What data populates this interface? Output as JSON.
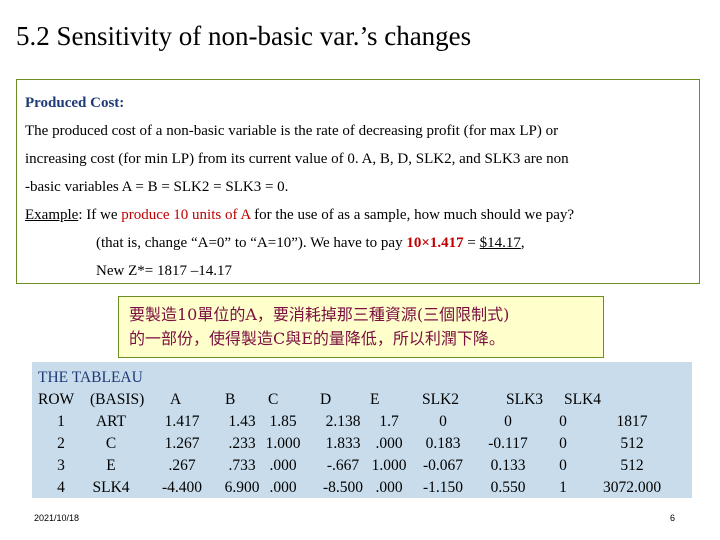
{
  "title": "5.2 Sensitivity of non-basic var.’s changes",
  "box": {
    "heading": "Produced Cost:",
    "line1": "The produced cost of a non-basic variable is the rate of decreasing profit (for max LP) or",
    "line2": "increasing cost (for min LP) from its current value of  0.  A, B, D, SLK2, and SLK3 are non",
    "line3": "-basic variables A = B = SLK2 = SLK3 = 0.",
    "example_label": "Example",
    "example_colon": ":  If we ",
    "example_red": "produce 10 units of A",
    "example_rest": " for the use of as a sample, how much should we pay?",
    "line5a": "(that is, change “A=0” to “A=10”). We have to pay ",
    "line5_calc": "10×1.417",
    "line5_eq": " = ",
    "line5_amount": "$14.17",
    "line5_end": ",",
    "line6": "New Z*= 1817 –14.17"
  },
  "chinese_note": {
    "line1": "要製造10單位的A，要消耗掉那三種資源(三個限制式)",
    "line2": "的一部份，使得製造C與E的量降低，所以利潤下降。"
  },
  "tableau": {
    "title": "THE TABLEAU",
    "headers": [
      "ROW",
      "(BASIS)",
      "A",
      "B",
      "C",
      "D",
      "E",
      "SLK2",
      "SLK3",
      "SLK4"
    ],
    "rows": [
      [
        "1",
        "ART",
        "1.417",
        "1.43",
        "1.85",
        "2.138",
        "1.7",
        "0",
        "0",
        "0",
        "1817"
      ],
      [
        "2",
        "C",
        "1.267",
        ".233",
        "1.000",
        "1.833",
        ".000",
        "0.183",
        "-0.117",
        "0",
        "512"
      ],
      [
        "3",
        "E",
        ".267",
        ".733",
        ".000",
        "-.667",
        "1.000",
        "-0.067",
        "0.133",
        "0",
        "512"
      ],
      [
        "4",
        "SLK4",
        "-4.400",
        "6.900",
        ".000",
        "-8.500",
        ".000",
        "-1.150",
        "0.550",
        "1",
        "3072.000"
      ]
    ]
  },
  "footer": {
    "date": "2021/10/18",
    "page": "6"
  },
  "colors": {
    "box_border": "#6b8e23",
    "heading": "#1f3a78",
    "emphasis_red": "#c00000",
    "note_bg": "#ffffcc",
    "note_text": "#7b1040",
    "tableau_bg": "#c8dceb"
  }
}
